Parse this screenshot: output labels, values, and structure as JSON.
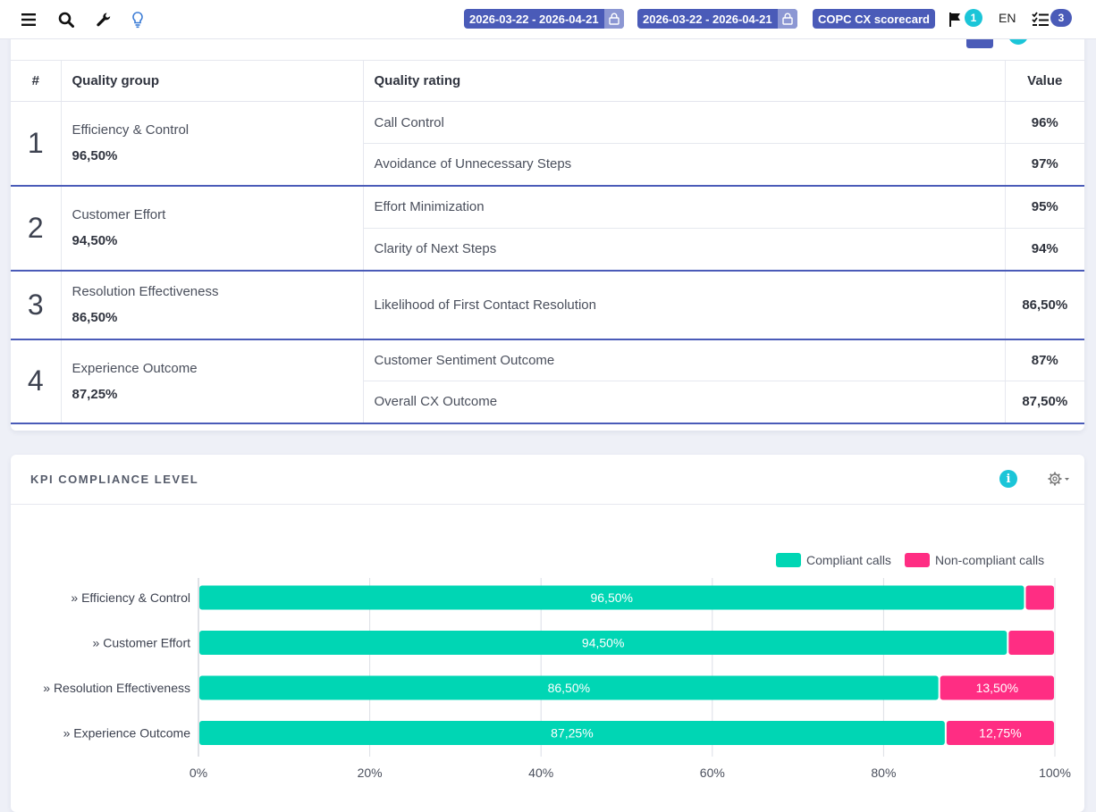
{
  "topbar": {
    "date_range_1": "2026-03-22 - 2026-04-21",
    "date_range_2": "2026-03-22 - 2026-04-21",
    "scorecard": "COPC CX scorecard",
    "flag_count": "1",
    "language": "EN",
    "tasks_count": "3",
    "colors": {
      "pill": "#4a5bb8",
      "flag_badge": "#1bc5d8",
      "tasks_badge": "#4a5bb8"
    }
  },
  "ratings": {
    "headers": {
      "num": "#",
      "group": "Quality group",
      "rating": "Quality rating",
      "value": "Value"
    },
    "groups": [
      {
        "num": "1",
        "name": "Efficiency & Control",
        "score": "96,50%",
        "items": [
          {
            "rating": "Call Control",
            "value": "96%"
          },
          {
            "rating": "Avoidance of Unnecessary Steps",
            "value": "97%"
          }
        ]
      },
      {
        "num": "2",
        "name": "Customer Effort",
        "score": "94,50%",
        "items": [
          {
            "rating": "Effort Minimization",
            "value": "95%"
          },
          {
            "rating": "Clarity of Next Steps",
            "value": "94%"
          }
        ]
      },
      {
        "num": "3",
        "name": "Resolution Effectiveness",
        "score": "86,50%",
        "items": [
          {
            "rating": "Likelihood of First Contact Resolution",
            "value": "86,50%"
          }
        ]
      },
      {
        "num": "4",
        "name": "Experience Outcome",
        "score": "87,25%",
        "items": [
          {
            "rating": "Customer Sentiment Outcome",
            "value": "87%"
          },
          {
            "rating": "Overall CX Outcome",
            "value": "87,50%"
          }
        ]
      }
    ]
  },
  "compliance": {
    "title": "KPI COMPLIANCE LEVEL",
    "info_icon": "info-icon",
    "settings_icon": "gear-icon"
  },
  "chart_data": {
    "type": "bar",
    "orientation": "horizontal",
    "stacked": true,
    "categories": [
      "» Efficiency & Control",
      "» Customer Effort",
      "» Resolution Effectiveness",
      "» Experience Outcome"
    ],
    "series": [
      {
        "name": "Compliant calls",
        "color": "#00d6b4",
        "values": [
          96.5,
          94.5,
          86.5,
          87.25
        ],
        "labels": [
          "96,50%",
          "94,50%",
          "86,50%",
          "87,25%"
        ]
      },
      {
        "name": "Non-compliant calls",
        "color": "#ff2d83",
        "values": [
          3.5,
          5.5,
          13.5,
          12.75
        ],
        "labels": [
          "",
          "",
          "13,50%",
          "12,75%"
        ]
      }
    ],
    "xlim": [
      0,
      100
    ],
    "xticks": [
      "0%",
      "20%",
      "40%",
      "60%",
      "80%",
      "100%"
    ],
    "grid": true,
    "legend": "top-right"
  }
}
